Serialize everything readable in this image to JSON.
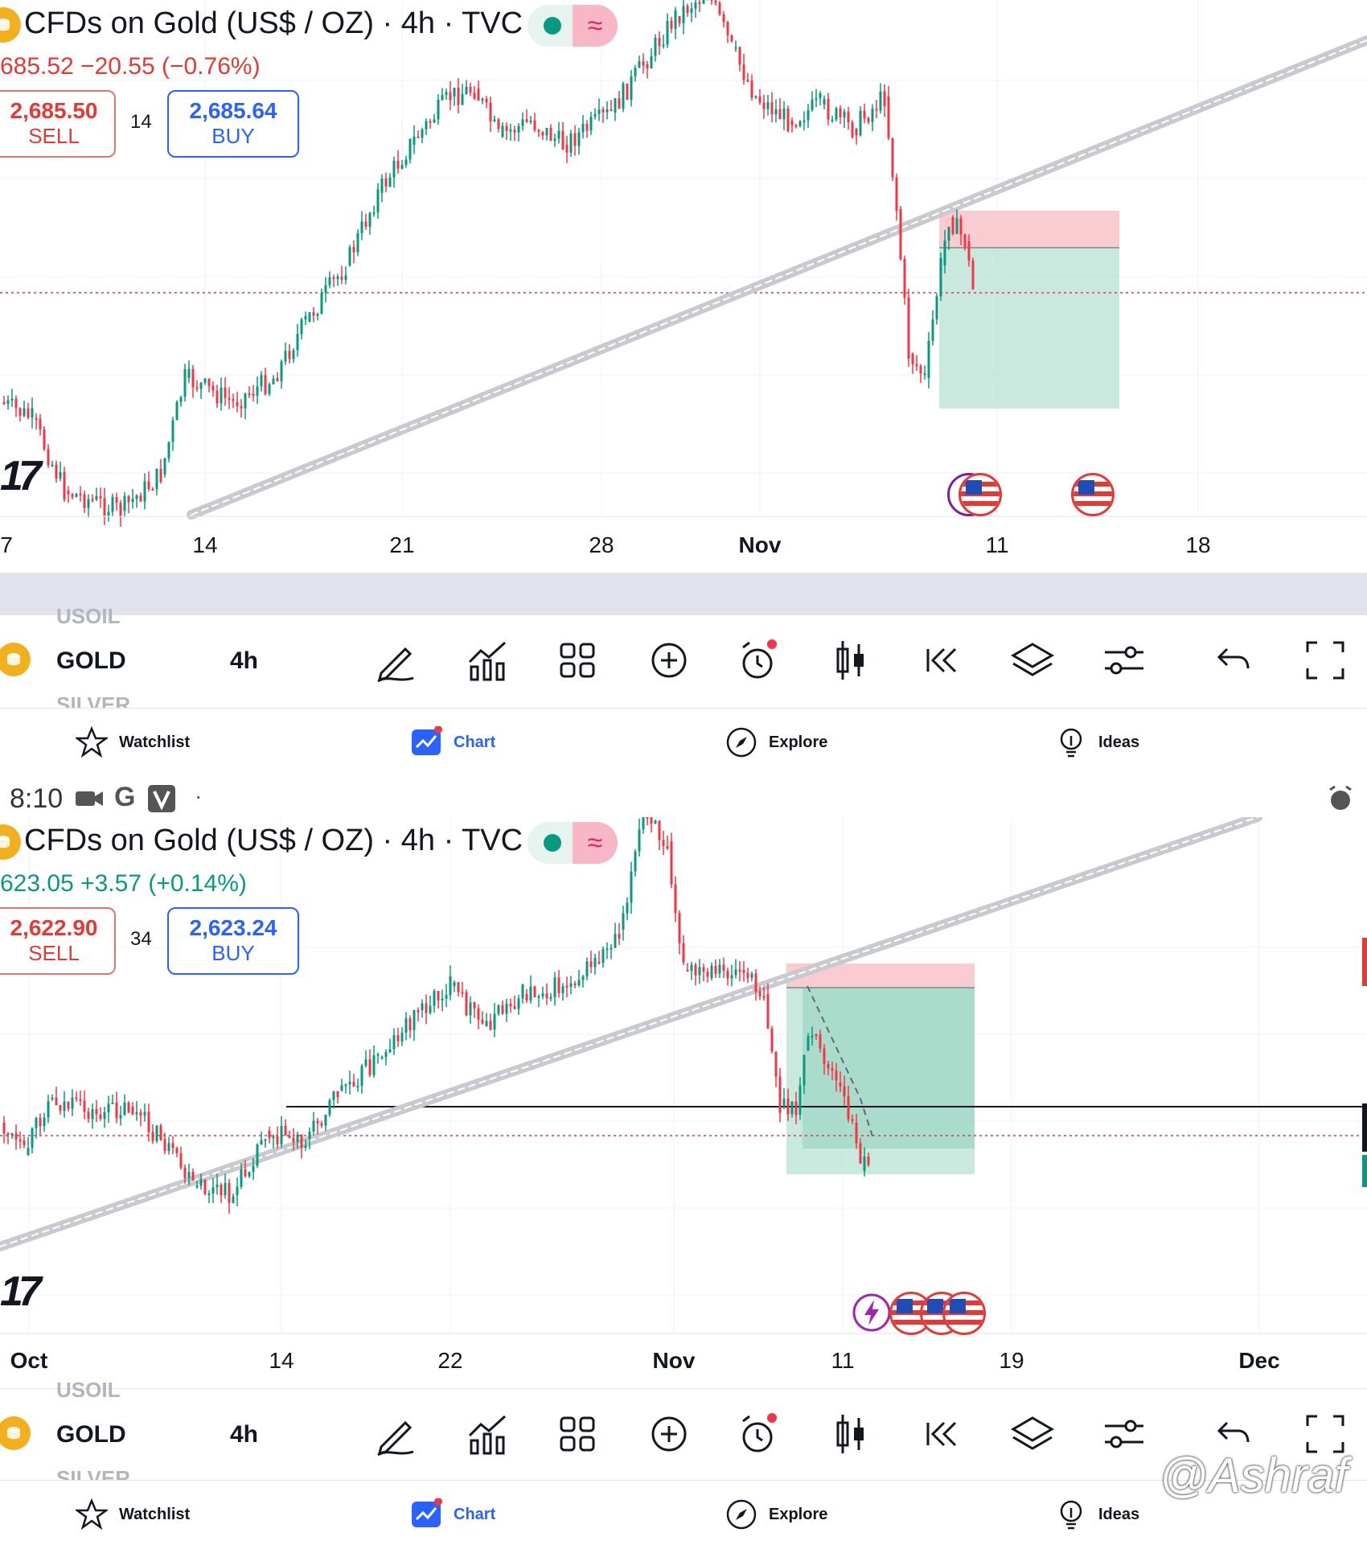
{
  "colors": {
    "up": "#089981",
    "down": "#f23645",
    "trendline": "#c8cad0",
    "sl_zone": "#f7c7cc",
    "tp_zone": "#b2dfd2"
  },
  "top": {
    "title": "CFDs on Gold (US$ / OZ) · 4h · TVC",
    "change": "685.52  −20.55 (−0.76%)",
    "change_color": "#e53935",
    "sell_price": "2,685.50",
    "sell_label": "SELL",
    "spread": "14",
    "buy_price": "2,685.64",
    "buy_label": "BUY",
    "logo": "17",
    "x_labels": [
      "7",
      "14",
      "21",
      "28",
      "Nov",
      "11",
      "18"
    ]
  },
  "bottom": {
    "status_time": "8:10",
    "status_icons": [
      "camera-icon",
      "google-icon",
      "v-app-icon"
    ],
    "title": "CFDs on Gold (US$ / OZ) · 4h · TVC",
    "change": "623.05  +3.57 (+0.14%)",
    "change_color": "#089981",
    "sell_price": "2,622.90",
    "sell_label": "SELL",
    "spread": "34",
    "buy_price": "2,623.24",
    "buy_label": "BUY",
    "logo": "17",
    "x_labels": [
      "Oct",
      "14",
      "22",
      "Nov",
      "11",
      "19",
      "Dec"
    ]
  },
  "toolbar": {
    "prev_symbol": "USOIL",
    "symbol": "GOLD",
    "next_symbol": "SILVER",
    "interval": "4h",
    "icons": [
      "draw-icon",
      "indicators-icon",
      "layouts-icon",
      "add-icon",
      "alert-icon",
      "chart-type-icon",
      "replay-icon",
      "layers-icon",
      "settings-icon",
      "undo-icon",
      "fullscreen-icon"
    ]
  },
  "nav": {
    "watchlist": "Watchlist",
    "chart": "Chart",
    "explore": "Explore",
    "ideas": "Ideas"
  },
  "watermark": "@Ashraf"
}
